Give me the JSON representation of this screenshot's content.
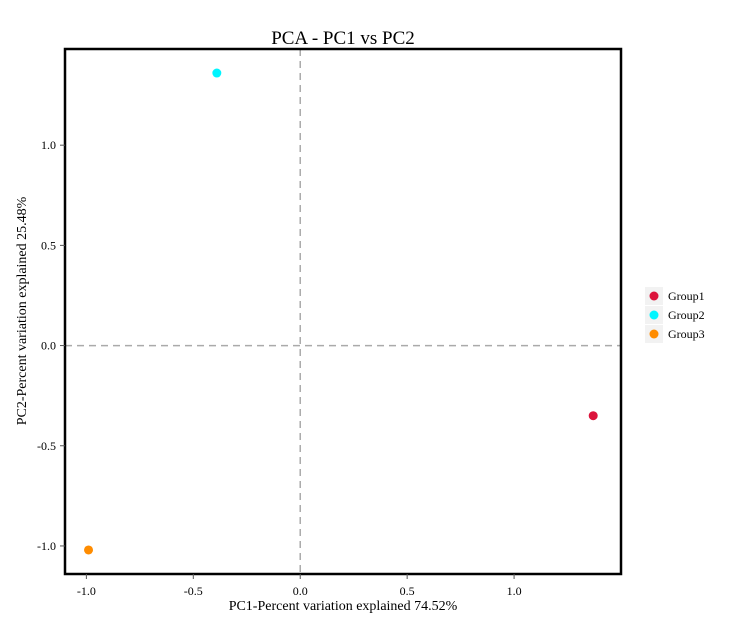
{
  "chart_data": {
    "type": "scatter",
    "title": "PCA - PC1 vs PC2",
    "xlabel": "PC1-Percent variation explained 74.52%",
    "ylabel": "PC2-Percent variation explained 25.48%",
    "xlim": [
      -1.1,
      1.5
    ],
    "ylim": [
      -1.14,
      1.48
    ],
    "xticks": [
      -1.0,
      -0.5,
      0.0,
      0.5,
      1.0
    ],
    "xtick_labels": [
      "-1.0",
      "-0.5",
      "0.0",
      "0.5",
      "1.0"
    ],
    "yticks": [
      -1.0,
      -0.5,
      0.0,
      0.5,
      1.0
    ],
    "ytick_labels": [
      "-1.0",
      "-0.5",
      "0.0",
      "0.5",
      "1.0"
    ],
    "grid": false,
    "reference_lines": {
      "x": 0,
      "y": 0,
      "style": "dashed"
    },
    "legend_placement": "right",
    "series": [
      {
        "name": "Group1",
        "color": "#DC143C",
        "points": [
          {
            "x": 1.37,
            "y": -0.35
          }
        ]
      },
      {
        "name": "Group2",
        "color": "#00F5FF",
        "points": [
          {
            "x": -0.39,
            "y": 1.36
          }
        ]
      },
      {
        "name": "Group3",
        "color": "#FF8C00",
        "points": [
          {
            "x": -0.99,
            "y": -1.02
          }
        ]
      }
    ]
  }
}
